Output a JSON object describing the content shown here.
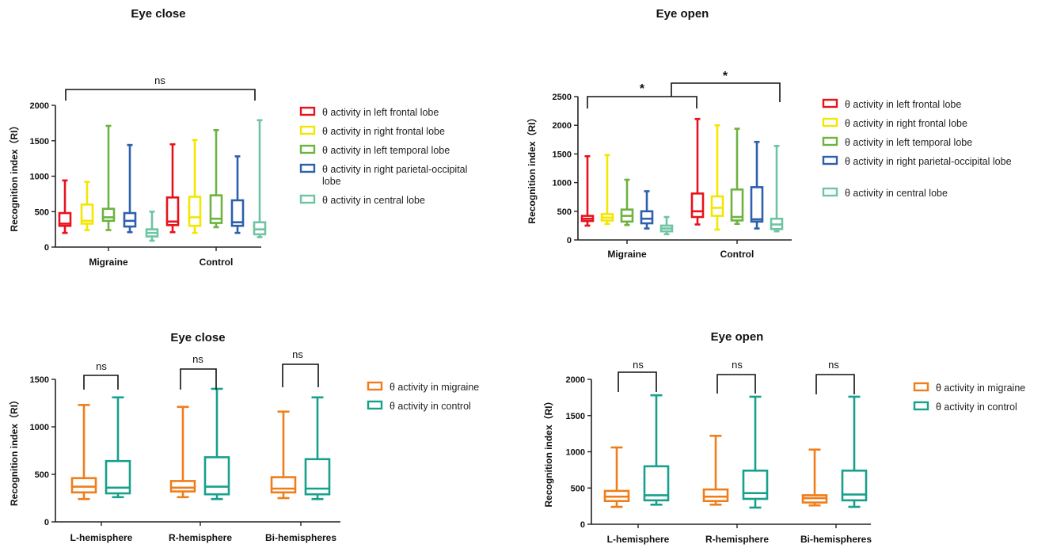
{
  "chart_data": [
    {
      "type": "box",
      "title": "Eye close",
      "ylabel": "Recognition index（RI）",
      "ylim": [
        0,
        2000
      ],
      "yticks": [
        0,
        500,
        1000,
        1500,
        2000
      ],
      "categories": [
        "Migraine",
        "Control"
      ],
      "legend_position": "right",
      "series": [
        {
          "name": "θ activity in left frontal lobe",
          "color": "#e8121c",
          "boxes": [
            {
              "min": 200,
              "q1": 300,
              "median": 330,
              "q3": 480,
              "max": 940
            },
            {
              "min": 210,
              "q1": 310,
              "median": 360,
              "q3": 700,
              "max": 1450
            }
          ]
        },
        {
          "name": "θ activity in right frontal lobe",
          "color": "#f3e600",
          "boxes": [
            {
              "min": 240,
              "q1": 330,
              "median": 370,
              "q3": 600,
              "max": 920
            },
            {
              "min": 200,
              "q1": 300,
              "median": 420,
              "q3": 710,
              "max": 1510
            }
          ]
        },
        {
          "name": "θ activity in left temporal lobe",
          "color": "#6db33f",
          "boxes": [
            {
              "min": 240,
              "q1": 370,
              "median": 420,
              "q3": 540,
              "max": 1710
            },
            {
              "min": 280,
              "q1": 340,
              "median": 400,
              "q3": 730,
              "max": 1650
            }
          ]
        },
        {
          "name": "θ activity in right parietal-occipital lobe",
          "color": "#2d5fad",
          "boxes": [
            {
              "min": 210,
              "q1": 290,
              "median": 370,
              "q3": 480,
              "max": 1440
            },
            {
              "min": 200,
              "q1": 300,
              "median": 350,
              "q3": 660,
              "max": 1280
            }
          ]
        },
        {
          "name": "θ activity in central lobe",
          "color": "#6ec4a3",
          "boxes": [
            {
              "min": 90,
              "q1": 150,
              "median": 200,
              "q3": 250,
              "max": 500
            },
            {
              "min": 140,
              "q1": 180,
              "median": 250,
              "q3": 350,
              "max": 1790
            }
          ]
        }
      ],
      "annotations": [
        {
          "text": "ns",
          "from": "Migraine",
          "to": "Control"
        }
      ]
    },
    {
      "type": "box",
      "title": "Eye open",
      "ylabel": "Recognition index（RI）",
      "ylim": [
        0,
        2500
      ],
      "yticks": [
        0,
        500,
        1000,
        1500,
        2000,
        2500
      ],
      "categories": [
        "Migraine",
        "Control"
      ],
      "legend_position": "right",
      "series": [
        {
          "name": "θ activity in left frontal lobe",
          "color": "#e8121c",
          "boxes": [
            {
              "min": 250,
              "q1": 330,
              "median": 370,
              "q3": 420,
              "max": 1460
            },
            {
              "min": 270,
              "q1": 400,
              "median": 500,
              "q3": 810,
              "max": 2110
            }
          ]
        },
        {
          "name": "θ activity in right frontal lobe",
          "color": "#f3e600",
          "boxes": [
            {
              "min": 280,
              "q1": 340,
              "median": 390,
              "q3": 450,
              "max": 1480
            },
            {
              "min": 180,
              "q1": 420,
              "median": 560,
              "q3": 760,
              "max": 2000
            }
          ]
        },
        {
          "name": "θ activity in left temporal lobe",
          "color": "#6db33f",
          "boxes": [
            {
              "min": 260,
              "q1": 320,
              "median": 420,
              "q3": 530,
              "max": 1050
            },
            {
              "min": 280,
              "q1": 340,
              "median": 400,
              "q3": 880,
              "max": 1940
            }
          ]
        },
        {
          "name": "θ activity in right parietal-occipital lobe",
          "color": "#2d5fad",
          "boxes": [
            {
              "min": 200,
              "q1": 290,
              "median": 370,
              "q3": 500,
              "max": 850
            },
            {
              "min": 200,
              "q1": 320,
              "median": 360,
              "q3": 920,
              "max": 1710
            }
          ]
        },
        {
          "name": "θ activity in central lobe",
          "color": "#6ec4a3",
          "boxes": [
            {
              "min": 100,
              "q1": 150,
              "median": 200,
              "q3": 250,
              "max": 400
            },
            {
              "min": 150,
              "q1": 190,
              "median": 270,
              "q3": 370,
              "max": 1640
            }
          ]
        }
      ],
      "annotations": [
        {
          "text": "*",
          "from": "Migraine",
          "to": "Control-left"
        },
        {
          "text": "*",
          "from": "bracket-1",
          "to": "Control-right"
        }
      ]
    },
    {
      "type": "box",
      "title": "Eye close",
      "ylabel": "Recognition index（RI）",
      "ylim": [
        0,
        1500
      ],
      "yticks": [
        0,
        500,
        1000,
        1500
      ],
      "categories": [
        "L-hemisphere",
        "R-hemisphere",
        "Bi-hemispheres"
      ],
      "legend_position": "right",
      "series": [
        {
          "name": "θ activity in migraine",
          "color": "#ef7d1a",
          "boxes": [
            {
              "min": 240,
              "q1": 310,
              "median": 370,
              "q3": 460,
              "max": 1230
            },
            {
              "min": 260,
              "q1": 320,
              "median": 360,
              "q3": 430,
              "max": 1210
            },
            {
              "min": 250,
              "q1": 310,
              "median": 350,
              "q3": 470,
              "max": 1160
            }
          ]
        },
        {
          "name": "θ activity in control",
          "color": "#17a08c",
          "boxes": [
            {
              "min": 260,
              "q1": 300,
              "median": 360,
              "q3": 640,
              "max": 1310
            },
            {
              "min": 240,
              "q1": 290,
              "median": 370,
              "q3": 680,
              "max": 1400
            },
            {
              "min": 240,
              "q1": 290,
              "median": 350,
              "q3": 660,
              "max": 1310
            }
          ]
        }
      ],
      "annotations": [
        {
          "text": "ns"
        },
        {
          "text": "ns"
        },
        {
          "text": "ns"
        }
      ]
    },
    {
      "type": "box",
      "title": "Eye open",
      "ylabel": "Recognition index（RI）",
      "ylim": [
        0,
        2000
      ],
      "yticks": [
        0,
        500,
        1000,
        1500,
        2000
      ],
      "categories": [
        "L-hemisphere",
        "R-hemisphere",
        "Bi-hemispheres"
      ],
      "legend_position": "right",
      "series": [
        {
          "name": "θ activity in migraine",
          "color": "#ef7d1a",
          "boxes": [
            {
              "min": 240,
              "q1": 320,
              "median": 380,
              "q3": 460,
              "max": 1060
            },
            {
              "min": 270,
              "q1": 320,
              "median": 380,
              "q3": 480,
              "max": 1220
            },
            {
              "min": 260,
              "q1": 300,
              "median": 360,
              "q3": 400,
              "max": 1030
            }
          ]
        },
        {
          "name": "θ activity in control",
          "color": "#17a08c",
          "boxes": [
            {
              "min": 270,
              "q1": 330,
              "median": 400,
              "q3": 800,
              "max": 1780
            },
            {
              "min": 230,
              "q1": 350,
              "median": 430,
              "q3": 740,
              "max": 1760
            },
            {
              "min": 240,
              "q1": 330,
              "median": 410,
              "q3": 740,
              "max": 1760
            }
          ]
        }
      ],
      "annotations": [
        {
          "text": "ns"
        },
        {
          "text": "ns"
        },
        {
          "text": "ns"
        }
      ]
    }
  ]
}
